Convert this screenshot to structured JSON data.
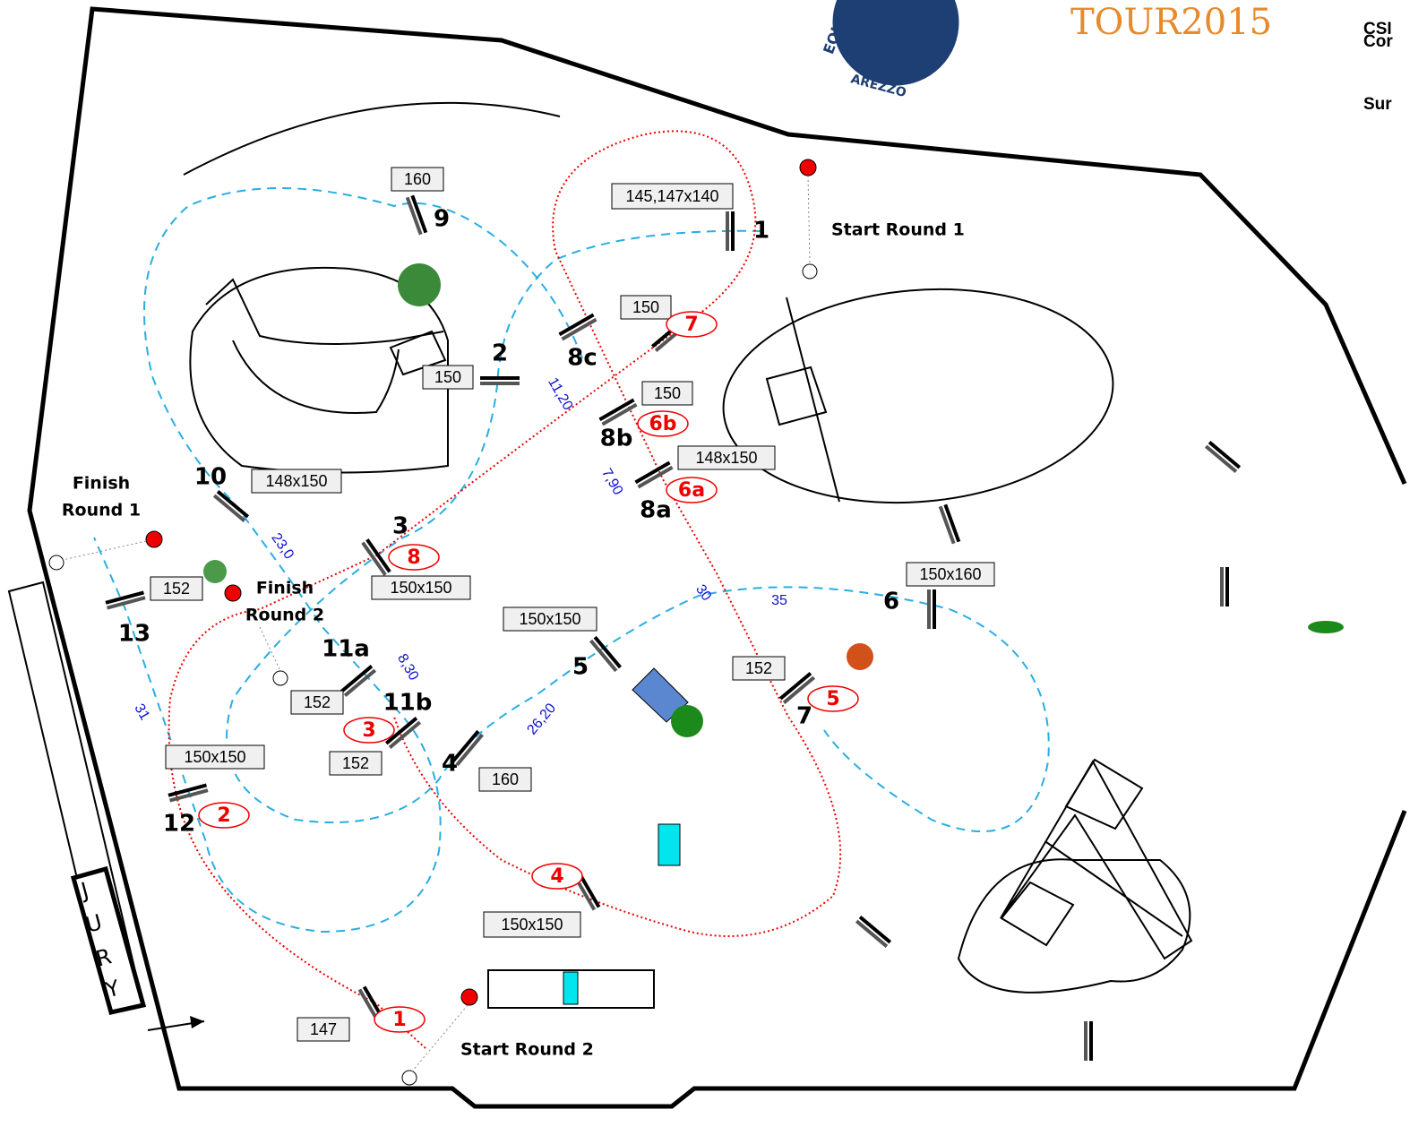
{
  "header": {
    "lines": [
      "CSI",
      "Cor",
      "Sur"
    ],
    "logo": "TOUR2015",
    "badge": [
      "EQUEST",
      "AREZZO"
    ]
  },
  "round1_numbers": [
    "1",
    "2",
    "3",
    "4",
    "5",
    "6",
    "7",
    "8a",
    "8b",
    "8c",
    "9",
    "10",
    "11a",
    "11b",
    "12",
    "13"
  ],
  "boxes": [
    "160",
    "145,147x140",
    "150",
    "150",
    "150",
    "148x150",
    "148x150",
    "150x150",
    "152",
    "150x150",
    "150x160",
    "152",
    "152",
    "152",
    "150x150",
    "160",
    "150x150",
    "147"
  ],
  "round2_numbers": [
    "1",
    "2",
    "3",
    "4",
    "5",
    "6a",
    "6b",
    "7",
    "8"
  ],
  "distances": [
    "11,20",
    "7,90",
    "23,0",
    "30",
    "35",
    "8,30",
    "26,20",
    "31"
  ],
  "markers": {
    "start_round_1": "Start Round 1",
    "finish_round_1": [
      "Finish",
      "Round 1"
    ],
    "finish_round_2": [
      "Finish",
      "Round 2"
    ],
    "start_round_2": "Start Round 2"
  },
  "jury": [
    "J",
    "U",
    "R",
    "Y"
  ]
}
